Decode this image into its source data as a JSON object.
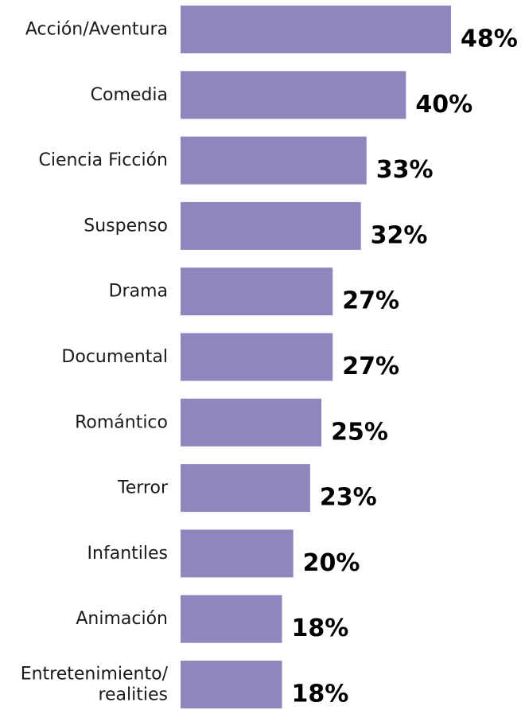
{
  "chart_data": {
    "type": "bar",
    "orientation": "horizontal",
    "categories": [
      [
        "Acción/Aventura"
      ],
      [
        "Comedia"
      ],
      [
        "Ciencia Ficción"
      ],
      [
        "Suspenso"
      ],
      [
        "Drama"
      ],
      [
        "Documental"
      ],
      [
        "Romántico"
      ],
      [
        "Terror"
      ],
      [
        "Infantiles"
      ],
      [
        "Animación"
      ],
      [
        "Entretenimiento/",
        "realities"
      ]
    ],
    "values": [
      48,
      40,
      33,
      32,
      27,
      27,
      25,
      23,
      20,
      18,
      18
    ],
    "value_labels": [
      "48%",
      "40%",
      "33%",
      "32%",
      "27%",
      "27%",
      "25%",
      "23%",
      "20%",
      "18%",
      "18%"
    ],
    "unit": "%",
    "bar_color": "#8f86bd",
    "title": "",
    "xlabel": "",
    "ylabel": "",
    "xlim": [
      0,
      48
    ],
    "grid": false,
    "legend": "none"
  }
}
